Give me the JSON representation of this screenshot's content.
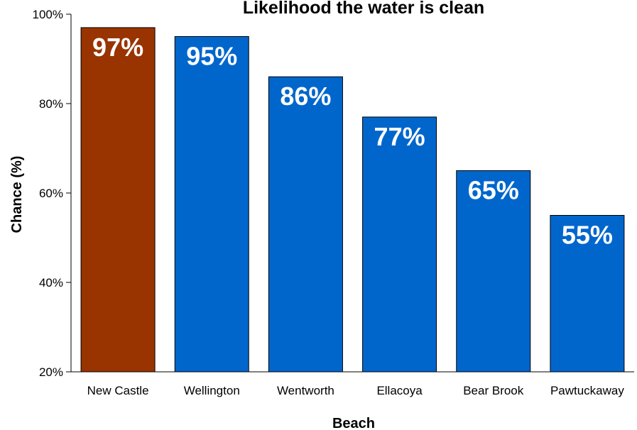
{
  "chart_data": {
    "type": "bar",
    "title": "Likelihood the water is clean",
    "xlabel": "Beach",
    "ylabel": "Chance (%)",
    "categories": [
      "New Castle",
      "Wellington",
      "Wentworth",
      "Ellacoya",
      "Bear Brook",
      "Pawtuckaway"
    ],
    "values": [
      97,
      95,
      86,
      77,
      65,
      55
    ],
    "value_labels": [
      "97%",
      "95%",
      "86%",
      "77%",
      "65%",
      "55%"
    ],
    "ylim": [
      20,
      100
    ],
    "yticks": [
      20,
      40,
      60,
      80,
      100
    ],
    "ytick_labels": [
      "20%",
      "40%",
      "60%",
      "80%",
      "100%"
    ],
    "grid": false,
    "legend": "none",
    "bar_colors": [
      "#993300",
      "#0066CC",
      "#0066CC",
      "#0066CC",
      "#0066CC",
      "#0066CC"
    ]
  }
}
